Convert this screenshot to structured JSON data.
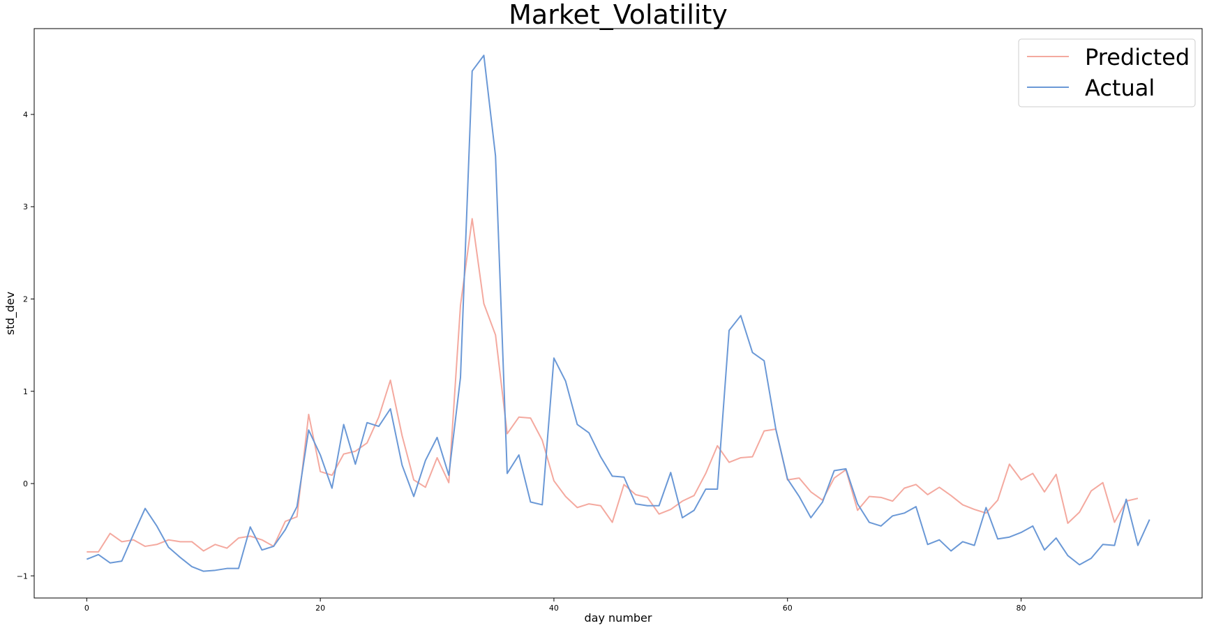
{
  "chart_data": {
    "type": "line",
    "title": "Market_Volatility",
    "xlabel": "day number",
    "ylabel": "std_dev",
    "xlim": [
      -4.5,
      95.5
    ],
    "ylim": [
      -1.24,
      4.93
    ],
    "xticks": [
      0,
      20,
      40,
      60,
      80
    ],
    "yticks": [
      -1,
      0,
      1,
      2,
      3,
      4
    ],
    "xtick_labels": [
      "0",
      "20",
      "40",
      "60",
      "80"
    ],
    "ytick_labels": [
      "−1",
      "0",
      "1",
      "2",
      "3",
      "4"
    ],
    "grid": false,
    "legend_position": "top-right",
    "series": [
      {
        "name": "Predicted",
        "color": "#f4a99f",
        "values": [
          -0.74,
          -0.74,
          -0.54,
          -0.63,
          -0.61,
          -0.68,
          -0.66,
          -0.61,
          -0.63,
          -0.63,
          -0.73,
          -0.66,
          -0.7,
          -0.59,
          -0.57,
          -0.61,
          -0.68,
          -0.41,
          -0.36,
          0.75,
          0.13,
          0.09,
          0.32,
          0.35,
          0.44,
          0.72,
          1.12,
          0.52,
          0.04,
          -0.04,
          0.28,
          0.01,
          1.93,
          2.87,
          1.95,
          1.61,
          0.54,
          0.72,
          0.71,
          0.47,
          0.03,
          -0.14,
          -0.26,
          -0.22,
          -0.24,
          -0.42,
          -0.01,
          -0.12,
          -0.15,
          -0.33,
          -0.28,
          -0.19,
          -0.13,
          0.11,
          0.41,
          0.23,
          0.28,
          0.29,
          0.57,
          0.59,
          0.04,
          0.06,
          -0.09,
          -0.18,
          0.06,
          0.15,
          -0.29,
          -0.14,
          -0.15,
          -0.19,
          -0.05,
          -0.01,
          -0.12,
          -0.04,
          -0.13,
          -0.23,
          -0.28,
          -0.32,
          -0.18,
          0.21,
          0.04,
          0.11,
          -0.09,
          0.1,
          -0.43,
          -0.31,
          -0.08,
          0.01,
          -0.42,
          -0.19,
          -0.16
        ]
      },
      {
        "name": "Actual",
        "color": "#6a98d6",
        "values": [
          -0.82,
          -0.77,
          -0.86,
          -0.84,
          -0.55,
          -0.27,
          -0.46,
          -0.69,
          -0.8,
          -0.9,
          -0.95,
          -0.94,
          -0.92,
          -0.92,
          -0.47,
          -0.72,
          -0.68,
          -0.5,
          -0.25,
          0.58,
          0.31,
          -0.05,
          0.64,
          0.21,
          0.66,
          0.62,
          0.81,
          0.2,
          -0.14,
          0.25,
          0.5,
          0.09,
          1.15,
          4.47,
          4.64,
          3.55,
          0.11,
          0.31,
          -0.2,
          -0.23,
          1.36,
          1.11,
          0.64,
          0.55,
          0.29,
          0.08,
          0.07,
          -0.22,
          -0.24,
          -0.24,
          0.12,
          -0.37,
          -0.29,
          -0.06,
          -0.06,
          1.66,
          1.82,
          1.42,
          1.33,
          0.59,
          0.05,
          -0.14,
          -0.37,
          -0.2,
          0.14,
          0.16,
          -0.22,
          -0.42,
          -0.46,
          -0.35,
          -0.32,
          -0.25,
          -0.66,
          -0.61,
          -0.73,
          -0.63,
          -0.67,
          -0.26,
          -0.6,
          -0.58,
          -0.53,
          -0.46,
          -0.72,
          -0.59,
          -0.78,
          -0.88,
          -0.81,
          -0.66,
          -0.67,
          -0.17,
          -0.67,
          -0.39
        ]
      }
    ]
  }
}
